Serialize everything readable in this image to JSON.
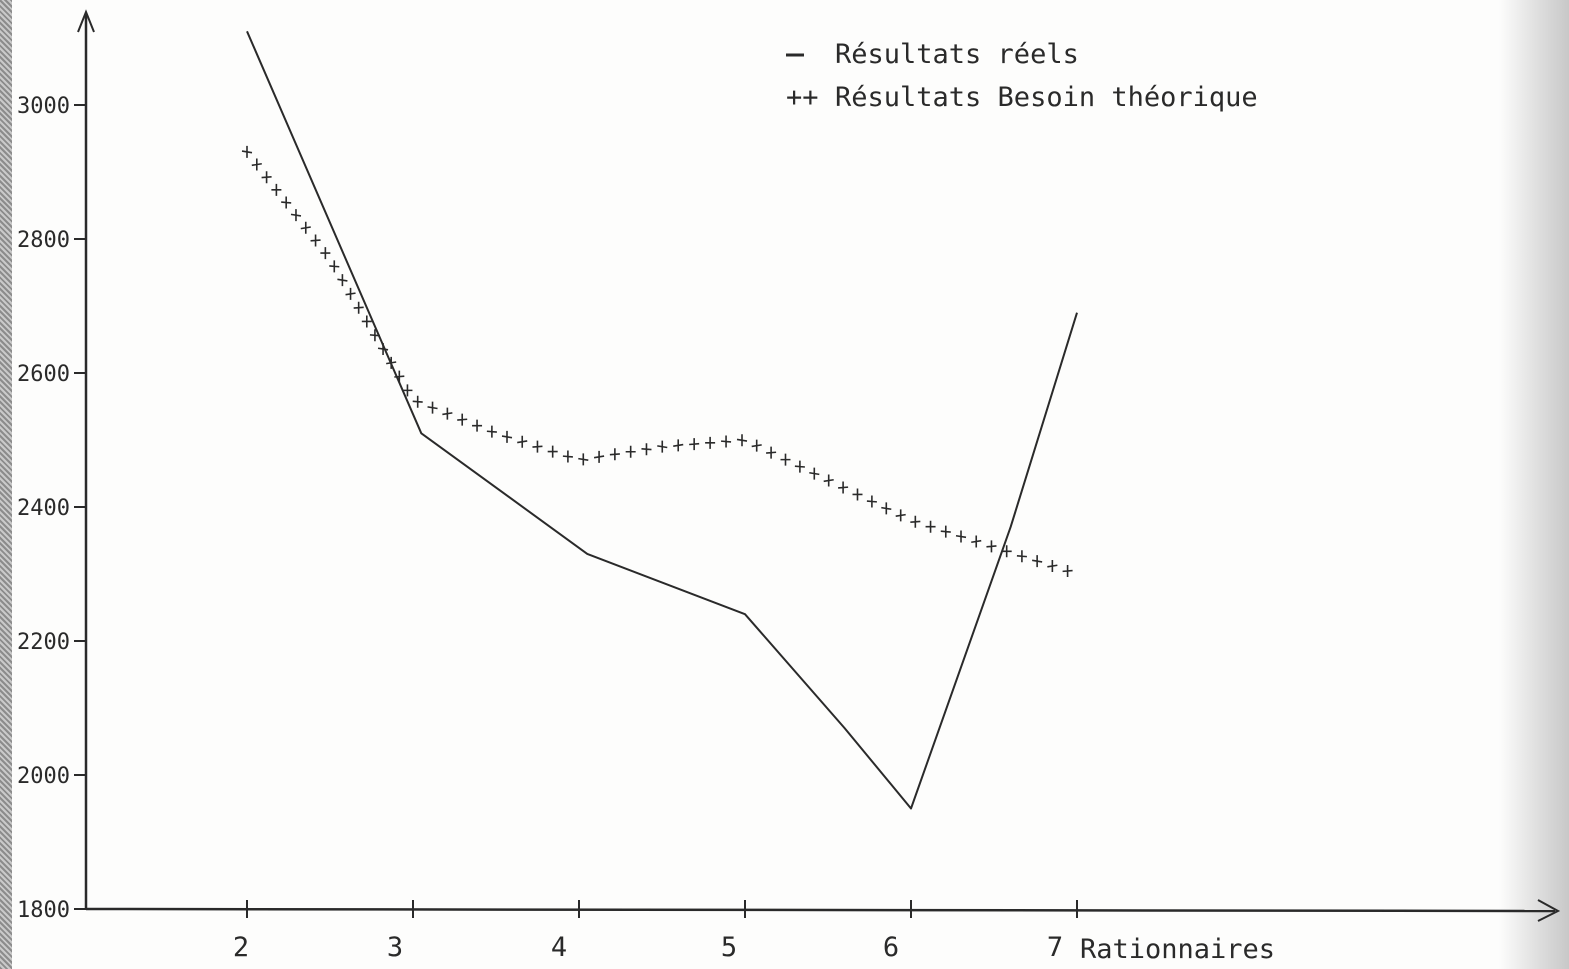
{
  "chart_data": {
    "type": "line",
    "title": "",
    "xlabel": "Rationnaires",
    "ylabel": "",
    "x": [
      2,
      3,
      4,
      5,
      6,
      7
    ],
    "xlim": [
      1,
      10
    ],
    "ylim": [
      1800,
      3200
    ],
    "yticks": [
      1800,
      2000,
      2200,
      2400,
      2600,
      2800,
      3000
    ],
    "ytick_labels": [
      "1800",
      "2000",
      "2200",
      "2400",
      "2600",
      "2800",
      "3000"
    ],
    "xticks": [
      2,
      3,
      4,
      5,
      6,
      7
    ],
    "xtick_labels": [
      "2",
      "3",
      "4",
      "5",
      "6",
      "7"
    ],
    "grid": false,
    "legend_position": "top-right",
    "series": [
      {
        "name": "Résultats réels",
        "legend_symbol": "-",
        "style": "solid",
        "color": "#2a2a2a",
        "points": [
          [
            2.0,
            3110
          ],
          [
            3.05,
            2510
          ],
          [
            4.05,
            2330
          ],
          [
            5.0,
            2240
          ],
          [
            5.6,
            2070
          ],
          [
            6.0,
            1950
          ],
          [
            6.6,
            2370
          ],
          [
            7.0,
            2690
          ]
        ]
      },
      {
        "name": "Résultats Besoin théorique",
        "legend_symbol": "++",
        "style": "crosses",
        "color": "#2a2a2a",
        "points": [
          [
            2.0,
            2930
          ],
          [
            2.5,
            2770
          ],
          [
            3.0,
            2560
          ],
          [
            3.5,
            2510
          ],
          [
            4.0,
            2470
          ],
          [
            4.5,
            2490
          ],
          [
            5.0,
            2500
          ],
          [
            5.5,
            2440
          ],
          [
            6.0,
            2380
          ],
          [
            6.5,
            2340
          ],
          [
            7.0,
            2300
          ]
        ]
      }
    ]
  },
  "colors": {
    "ink": "#2a2a2a",
    "paper": "#fdfdfc"
  }
}
